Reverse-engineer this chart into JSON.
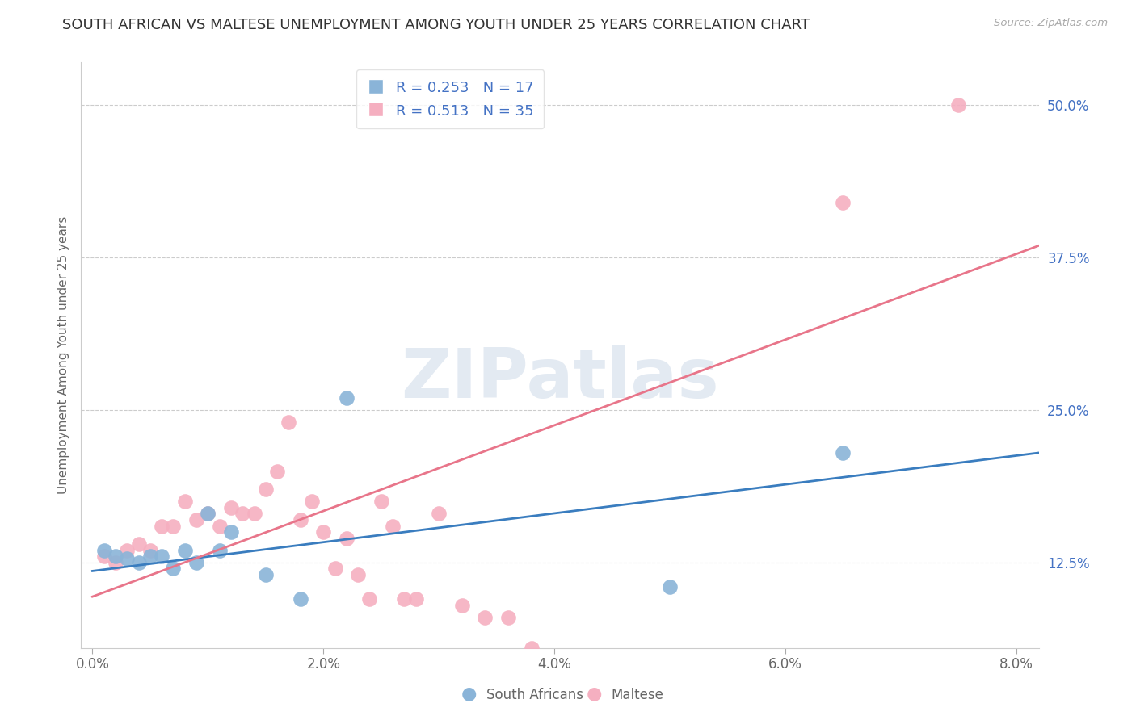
{
  "title": "SOUTH AFRICAN VS MALTESE UNEMPLOYMENT AMONG YOUTH UNDER 25 YEARS CORRELATION CHART",
  "source": "Source: ZipAtlas.com",
  "xlabel_ticks": [
    "0.0%",
    "2.0%",
    "4.0%",
    "6.0%",
    "8.0%"
  ],
  "xlabel_vals": [
    0.0,
    0.02,
    0.04,
    0.06,
    0.08
  ],
  "ylabel_ticks": [
    "12.5%",
    "25.0%",
    "37.5%",
    "50.0%"
  ],
  "ylabel_vals": [
    0.125,
    0.25,
    0.375,
    0.5
  ],
  "xlim": [
    -0.001,
    0.082
  ],
  "ylim": [
    0.055,
    0.535
  ],
  "ylabel": "Unemployment Among Youth under 25 years",
  "sa_R": 0.253,
  "sa_N": 17,
  "mt_R": 0.513,
  "mt_N": 35,
  "sa_color": "#8ab4d8",
  "mt_color": "#f5afc0",
  "sa_line_color": "#3a7dbf",
  "mt_line_color": "#e8758a",
  "watermark": "ZIPatlas",
  "sa_x": [
    0.001,
    0.002,
    0.003,
    0.004,
    0.005,
    0.006,
    0.007,
    0.008,
    0.009,
    0.01,
    0.011,
    0.012,
    0.015,
    0.018,
    0.022,
    0.05,
    0.065
  ],
  "sa_y": [
    0.135,
    0.13,
    0.128,
    0.125,
    0.13,
    0.13,
    0.12,
    0.135,
    0.125,
    0.165,
    0.135,
    0.15,
    0.115,
    0.095,
    0.26,
    0.105,
    0.215
  ],
  "mt_x": [
    0.001,
    0.002,
    0.003,
    0.004,
    0.005,
    0.006,
    0.007,
    0.008,
    0.009,
    0.01,
    0.011,
    0.012,
    0.013,
    0.014,
    0.015,
    0.016,
    0.017,
    0.018,
    0.019,
    0.02,
    0.021,
    0.022,
    0.023,
    0.024,
    0.025,
    0.026,
    0.027,
    0.028,
    0.03,
    0.032,
    0.034,
    0.036,
    0.038,
    0.065,
    0.075
  ],
  "mt_y": [
    0.13,
    0.125,
    0.135,
    0.14,
    0.135,
    0.155,
    0.155,
    0.175,
    0.16,
    0.165,
    0.155,
    0.17,
    0.165,
    0.165,
    0.185,
    0.2,
    0.24,
    0.16,
    0.175,
    0.15,
    0.12,
    0.145,
    0.115,
    0.095,
    0.175,
    0.155,
    0.095,
    0.095,
    0.165,
    0.09,
    0.08,
    0.08,
    0.055,
    0.42,
    0.5
  ],
  "sa_line_x": [
    0.0,
    0.082
  ],
  "sa_line_y": [
    0.118,
    0.215
  ],
  "mt_line_x": [
    0.0,
    0.082
  ],
  "mt_line_y": [
    0.097,
    0.385
  ]
}
